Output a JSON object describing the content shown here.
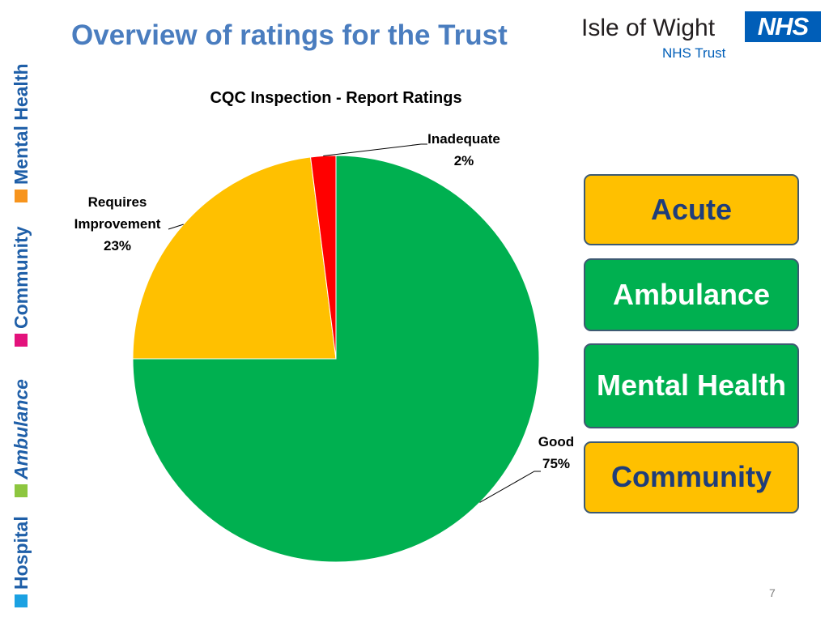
{
  "slide": {
    "title": "Overview of ratings for the Trust",
    "page_number": "7"
  },
  "logo": {
    "org_name": "Isle of Wight",
    "nhs_mark": "NHS",
    "trust_name": "NHS Trust",
    "nhs_color": "#005eb8"
  },
  "side_strip": {
    "items": [
      {
        "label": "Hospital",
        "color": "#1ba1e2"
      },
      {
        "label": "Ambulance",
        "color": "#8dc63f"
      },
      {
        "label": "Community",
        "color": "#e3127c"
      },
      {
        "label": "Mental Health",
        "color": "#f7941d"
      }
    ],
    "text_color": "#1f5fa8"
  },
  "chart_data": {
    "type": "pie",
    "title": "CQC Inspection - Report Ratings",
    "slices": [
      {
        "label": "Good",
        "value": 75,
        "display": "75%",
        "color": "#00b050"
      },
      {
        "label": "Requires Improvement",
        "value": 23,
        "display": "23%",
        "color": "#ffc000"
      },
      {
        "label": "Inadequate",
        "value": 2,
        "display": "2%",
        "color": "#ff0000"
      }
    ],
    "start": "12 o'clock, clockwise",
    "legend": "none"
  },
  "services": [
    {
      "label": "Acute",
      "bg": "#ffc000",
      "fg": "#1f3d7a"
    },
    {
      "label": "Ambulance",
      "bg": "#00b050",
      "fg": "#ffffff"
    },
    {
      "label": "Mental Health",
      "bg": "#00b050",
      "fg": "#ffffff"
    },
    {
      "label": "Community",
      "bg": "#ffc000",
      "fg": "#1f3d7a"
    }
  ]
}
